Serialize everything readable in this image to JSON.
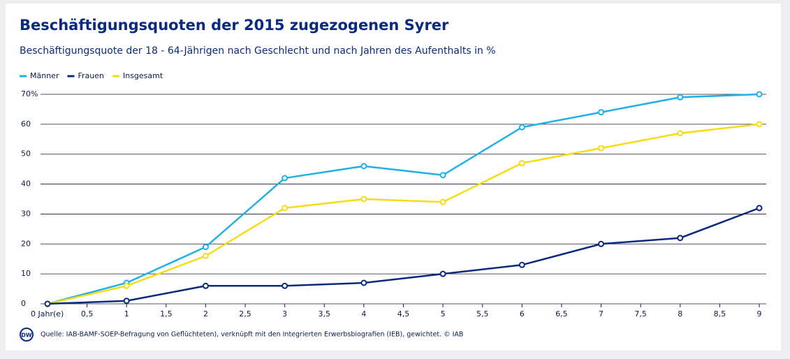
{
  "chart_data": {
    "type": "line",
    "title": "Beschäftigungsquoten der 2015 zugezogenen Syrer",
    "subtitle": "Beschäftigungsquote der 18 - 64-Jährigen nach Geschlecht und nach Jahren des Aufenthalts in %",
    "source": "Quelle: IAB-BAMF-SOEP-Befragung von Geflüchteten), verknüpft mit den Integrierten Erwerbsbiografien (IEB), gewichtet. © IAB",
    "logo": "DW",
    "x": [
      0,
      1,
      2,
      3,
      4,
      5,
      6,
      7,
      8,
      9
    ],
    "series": [
      {
        "name": "Männer",
        "color": "#1fb0ea",
        "values": [
          0,
          7,
          19,
          42,
          46,
          43,
          59,
          64,
          69,
          70
        ]
      },
      {
        "name": "Frauen",
        "color": "#0b2a7e",
        "values": [
          0,
          1,
          6,
          6,
          7,
          10,
          13,
          20,
          22,
          32
        ]
      },
      {
        "name": "Insgesamt",
        "color": "#f6dc14",
        "values": [
          0,
          6,
          16,
          32,
          35,
          34,
          47,
          52,
          57,
          60
        ]
      }
    ],
    "xlim": [
      0,
      9
    ],
    "xticks": [
      {
        "value": 0,
        "label": "0 Jahr(e)"
      },
      {
        "value": 0.5,
        "label": "0,5"
      },
      1,
      {
        "value": 1.5,
        "label": "1,5"
      },
      2,
      {
        "value": 2.5,
        "label": "2,5"
      },
      3,
      {
        "value": 3.5,
        "label": "3,5"
      },
      4,
      {
        "value": 4.5,
        "label": "4,5"
      },
      5,
      {
        "value": 5.5,
        "label": "5,5"
      },
      6,
      {
        "value": 6.5,
        "label": "6,5"
      },
      7,
      {
        "value": 7.5,
        "label": "7,5"
      },
      8,
      {
        "value": 8.5,
        "label": "8,5"
      },
      9
    ],
    "ylim": [
      0,
      70
    ],
    "yticks": [
      0,
      10,
      20,
      30,
      40,
      50,
      {
        "value": 60,
        "label": "60"
      },
      {
        "value": 70,
        "label": "70%"
      }
    ],
    "grid": true,
    "legend": "top-left"
  }
}
